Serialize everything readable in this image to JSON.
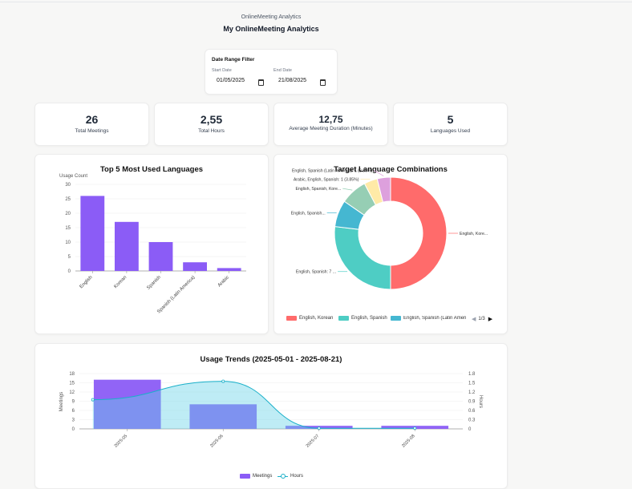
{
  "header": {
    "subtitle": "OnlineMeeting Analytics",
    "title": "My OnlineMeeting Analytics"
  },
  "filter": {
    "title": "Date Range Filter",
    "start_label": "Start Date",
    "start_value": "01/05/2025",
    "end_label": "End Date",
    "end_value": "21/08/2025"
  },
  "kpis": [
    {
      "value": "26",
      "label": "Total Meetings"
    },
    {
      "value": "2,55",
      "label": "Total Hours"
    },
    {
      "value": "12,75",
      "label": "Average Meeting Duration (Minutes)"
    },
    {
      "value": "5",
      "label": "Languages Used"
    }
  ],
  "colors": {
    "purple": "#8b5cf6",
    "teal": "#4ecdc4",
    "red": "#ff6b6b",
    "blue": "#45b7d1",
    "green": "#96ceb4",
    "yellow": "#ffeaa7",
    "pink": "#dda0dd",
    "hours_line": "#1ab0c9"
  },
  "chart_data": [
    {
      "type": "bar",
      "title": "Top 5 Most Used Languages",
      "ylabel": "Usage Count",
      "xlabel": "",
      "categories": [
        "English",
        "Korean",
        "Spanish",
        "Spanish (Latin America)",
        "Arabic"
      ],
      "values": [
        26,
        17,
        10,
        3,
        1
      ],
      "ylim": [
        0,
        30
      ],
      "yticks": [
        0,
        5,
        10,
        15,
        20,
        25,
        30
      ]
    },
    {
      "type": "pie",
      "title": "Target Language Combinations",
      "donut": true,
      "labels": [
        "English, Korean",
        "English, Spanish",
        "English, Spanish (Latin America)",
        "English, Spanish, Korean",
        "Arabic, English, Spanish",
        "English, Spanish (Latin America)"
      ],
      "values": [
        13,
        7,
        2,
        2,
        1,
        1
      ],
      "slice_colors": [
        "#ff6b6b",
        "#4ecdc4",
        "#45b7d1",
        "#96ceb4",
        "#ffeaa7",
        "#dda0dd"
      ],
      "callouts": [
        {
          "slice": 0,
          "text": "English, Kore..."
        },
        {
          "slice": 1,
          "text": "English, Spanish: 7 ..."
        },
        {
          "slice": 2,
          "text": "English, Spanish..."
        },
        {
          "slice": 3,
          "text": "English, Spanish, Kore..."
        },
        {
          "slice": 4,
          "text": "Arabic, English, Spanish: 1 (3.85%)"
        },
        {
          "slice": 5,
          "text": "English, Spanish (Latin America): 1 (3.85%)"
        }
      ],
      "legend": [
        "English, Korean",
        "English, Spanish",
        "English, Spanish (Latin Ameri"
      ],
      "legend_page": "1/3"
    },
    {
      "type": "bar+line",
      "title": "Usage Trends (2025-05-01 - 2025-08-21)",
      "categories": [
        "2025-05",
        "2025-06",
        "2025-07",
        "2025-08"
      ],
      "series": [
        {
          "name": "Meetings",
          "type": "bar",
          "axis": "left",
          "values": [
            16,
            8,
            1,
            1
          ]
        },
        {
          "name": "Hours",
          "type": "area",
          "axis": "right",
          "values": [
            0.95,
            1.55,
            0.02,
            0.02
          ]
        }
      ],
      "ylabel_left": "Meetings",
      "ylabel_right": "Hours",
      "ylim_left": [
        0,
        18
      ],
      "yticks_left": [
        0,
        3,
        6,
        9,
        12,
        15,
        18
      ],
      "ylim_right": [
        0,
        1.8
      ],
      "yticks_right": [
        "0",
        "0.3",
        "0.6",
        "0.9",
        "1.2",
        "1.5",
        "1.8"
      ]
    }
  ]
}
